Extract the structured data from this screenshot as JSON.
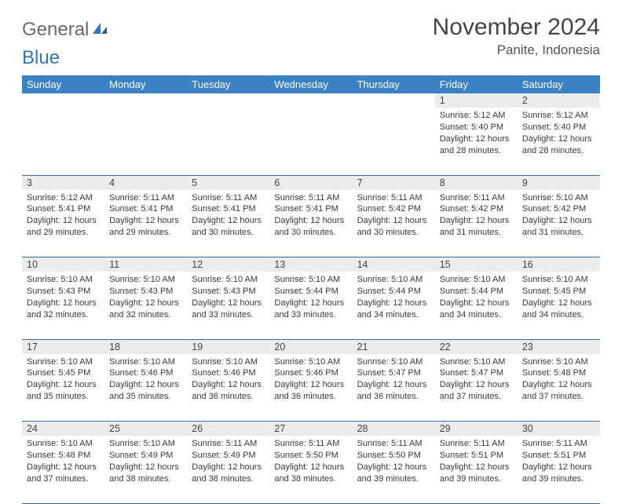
{
  "logo": {
    "word1": "General",
    "word2": "Blue"
  },
  "title": "November 2024",
  "location": "Panite, Indonesia",
  "colors": {
    "header_bg": "#3b82c4",
    "header_text": "#ffffff",
    "daynum_bg": "#ececec",
    "row_divider": "#3b6fa0",
    "logo_grey": "#6a6a6a",
    "logo_blue": "#2f76ba",
    "text": "#333333"
  },
  "weekdays": [
    "Sunday",
    "Monday",
    "Tuesday",
    "Wednesday",
    "Thursday",
    "Friday",
    "Saturday"
  ],
  "weeks": [
    {
      "nums": [
        "",
        "",
        "",
        "",
        "",
        "1",
        "2"
      ],
      "cells": [
        null,
        null,
        null,
        null,
        null,
        {
          "sunrise": "5:12 AM",
          "sunset": "5:40 PM",
          "daylight": "12 hours and 28 minutes."
        },
        {
          "sunrise": "5:12 AM",
          "sunset": "5:40 PM",
          "daylight": "12 hours and 28 minutes."
        }
      ]
    },
    {
      "nums": [
        "3",
        "4",
        "5",
        "6",
        "7",
        "8",
        "9"
      ],
      "cells": [
        {
          "sunrise": "5:12 AM",
          "sunset": "5:41 PM",
          "daylight": "12 hours and 29 minutes."
        },
        {
          "sunrise": "5:11 AM",
          "sunset": "5:41 PM",
          "daylight": "12 hours and 29 minutes."
        },
        {
          "sunrise": "5:11 AM",
          "sunset": "5:41 PM",
          "daylight": "12 hours and 30 minutes."
        },
        {
          "sunrise": "5:11 AM",
          "sunset": "5:41 PM",
          "daylight": "12 hours and 30 minutes."
        },
        {
          "sunrise": "5:11 AM",
          "sunset": "5:42 PM",
          "daylight": "12 hours and 30 minutes."
        },
        {
          "sunrise": "5:11 AM",
          "sunset": "5:42 PM",
          "daylight": "12 hours and 31 minutes."
        },
        {
          "sunrise": "5:10 AM",
          "sunset": "5:42 PM",
          "daylight": "12 hours and 31 minutes."
        }
      ]
    },
    {
      "nums": [
        "10",
        "11",
        "12",
        "13",
        "14",
        "15",
        "16"
      ],
      "cells": [
        {
          "sunrise": "5:10 AM",
          "sunset": "5:43 PM",
          "daylight": "12 hours and 32 minutes."
        },
        {
          "sunrise": "5:10 AM",
          "sunset": "5:43 PM",
          "daylight": "12 hours and 32 minutes."
        },
        {
          "sunrise": "5:10 AM",
          "sunset": "5:43 PM",
          "daylight": "12 hours and 33 minutes."
        },
        {
          "sunrise": "5:10 AM",
          "sunset": "5:44 PM",
          "daylight": "12 hours and 33 minutes."
        },
        {
          "sunrise": "5:10 AM",
          "sunset": "5:44 PM",
          "daylight": "12 hours and 34 minutes."
        },
        {
          "sunrise": "5:10 AM",
          "sunset": "5:44 PM",
          "daylight": "12 hours and 34 minutes."
        },
        {
          "sunrise": "5:10 AM",
          "sunset": "5:45 PM",
          "daylight": "12 hours and 34 minutes."
        }
      ]
    },
    {
      "nums": [
        "17",
        "18",
        "19",
        "20",
        "21",
        "22",
        "23"
      ],
      "cells": [
        {
          "sunrise": "5:10 AM",
          "sunset": "5:45 PM",
          "daylight": "12 hours and 35 minutes."
        },
        {
          "sunrise": "5:10 AM",
          "sunset": "5:46 PM",
          "daylight": "12 hours and 35 minutes."
        },
        {
          "sunrise": "5:10 AM",
          "sunset": "5:46 PM",
          "daylight": "12 hours and 36 minutes."
        },
        {
          "sunrise": "5:10 AM",
          "sunset": "5:46 PM",
          "daylight": "12 hours and 36 minutes."
        },
        {
          "sunrise": "5:10 AM",
          "sunset": "5:47 PM",
          "daylight": "12 hours and 36 minutes."
        },
        {
          "sunrise": "5:10 AM",
          "sunset": "5:47 PM",
          "daylight": "12 hours and 37 minutes."
        },
        {
          "sunrise": "5:10 AM",
          "sunset": "5:48 PM",
          "daylight": "12 hours and 37 minutes."
        }
      ]
    },
    {
      "nums": [
        "24",
        "25",
        "26",
        "27",
        "28",
        "29",
        "30"
      ],
      "cells": [
        {
          "sunrise": "5:10 AM",
          "sunset": "5:48 PM",
          "daylight": "12 hours and 37 minutes."
        },
        {
          "sunrise": "5:10 AM",
          "sunset": "5:49 PM",
          "daylight": "12 hours and 38 minutes."
        },
        {
          "sunrise": "5:11 AM",
          "sunset": "5:49 PM",
          "daylight": "12 hours and 38 minutes."
        },
        {
          "sunrise": "5:11 AM",
          "sunset": "5:50 PM",
          "daylight": "12 hours and 38 minutes."
        },
        {
          "sunrise": "5:11 AM",
          "sunset": "5:50 PM",
          "daylight": "12 hours and 39 minutes."
        },
        {
          "sunrise": "5:11 AM",
          "sunset": "5:51 PM",
          "daylight": "12 hours and 39 minutes."
        },
        {
          "sunrise": "5:11 AM",
          "sunset": "5:51 PM",
          "daylight": "12 hours and 39 minutes."
        }
      ]
    }
  ],
  "labels": {
    "sunrise": "Sunrise:",
    "sunset": "Sunset:",
    "daylight": "Daylight:"
  }
}
